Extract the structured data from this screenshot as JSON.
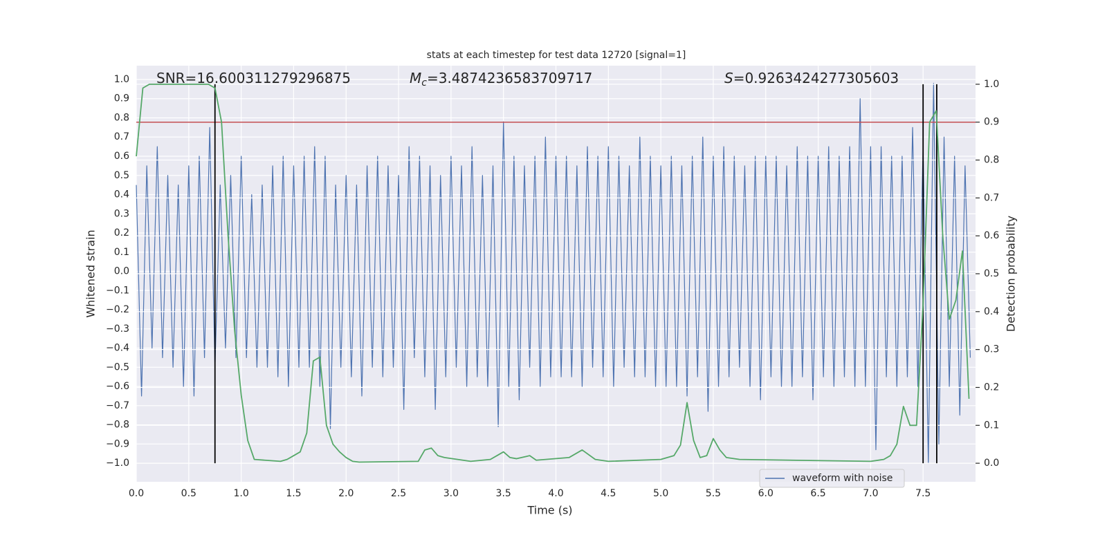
{
  "chart_data": {
    "type": "line",
    "title": "stats at each timestep for test data 12720 [signal=1]",
    "xlabel": "Time (s)",
    "ylabel": "Whitened strain",
    "y2label": "Detection probability",
    "xlim": [
      0,
      8
    ],
    "ylim": [
      -1.097,
      1.072
    ],
    "y2lim": [
      -0.049,
      1.049
    ],
    "grid": true,
    "legend": "lower right",
    "xticks": [
      {
        "value": 0,
        "label": "0.0"
      },
      {
        "value": 0.5,
        "label": "0.5"
      },
      {
        "value": 1,
        "label": "1.0"
      },
      {
        "value": 1.5,
        "label": "1.5"
      },
      {
        "value": 2,
        "label": "2.0"
      },
      {
        "value": 2.5,
        "label": "2.5"
      },
      {
        "value": 3,
        "label": "3.0"
      },
      {
        "value": 3.5,
        "label": "3.5"
      },
      {
        "value": 4,
        "label": "4.0"
      },
      {
        "value": 4.5,
        "label": "4.5"
      },
      {
        "value": 5,
        "label": "5.0"
      },
      {
        "value": 5.5,
        "label": "5.5"
      },
      {
        "value": 6,
        "label": "6.0"
      },
      {
        "value": 6.5,
        "label": "6.5"
      },
      {
        "value": 7,
        "label": "7.0"
      },
      {
        "value": 7.5,
        "label": "7.5"
      }
    ],
    "yticks": [
      {
        "value": -1,
        "label": "−1.0"
      },
      {
        "value": -0.9,
        "label": "−0.9"
      },
      {
        "value": -0.8,
        "label": "−0.8"
      },
      {
        "value": -0.7,
        "label": "−0.7"
      },
      {
        "value": -0.6,
        "label": "−0.6"
      },
      {
        "value": -0.5,
        "label": "−0.5"
      },
      {
        "value": -0.4,
        "label": "−0.4"
      },
      {
        "value": -0.3,
        "label": "−0.3"
      },
      {
        "value": -0.2,
        "label": "−0.2"
      },
      {
        "value": -0.1,
        "label": "−0.1"
      },
      {
        "value": 0,
        "label": "0.0"
      },
      {
        "value": 0.1,
        "label": "0.1"
      },
      {
        "value": 0.2,
        "label": "0.2"
      },
      {
        "value": 0.3,
        "label": "0.3"
      },
      {
        "value": 0.4,
        "label": "0.4"
      },
      {
        "value": 0.5,
        "label": "0.5"
      },
      {
        "value": 0.6,
        "label": "0.6"
      },
      {
        "value": 0.7,
        "label": "0.7"
      },
      {
        "value": 0.8,
        "label": "0.8"
      },
      {
        "value": 0.9,
        "label": "0.9"
      },
      {
        "value": 1,
        "label": "1.0"
      }
    ],
    "y2ticks": [
      {
        "value": 0,
        "label": "0.0"
      },
      {
        "value": 0.1,
        "label": "0.1"
      },
      {
        "value": 0.2,
        "label": "0.2"
      },
      {
        "value": 0.3,
        "label": "0.3"
      },
      {
        "value": 0.4,
        "label": "0.4"
      },
      {
        "value": 0.5,
        "label": "0.5"
      },
      {
        "value": 0.6,
        "label": "0.6"
      },
      {
        "value": 0.7,
        "label": "0.7"
      },
      {
        "value": 0.8,
        "label": "0.8"
      },
      {
        "value": 0.9,
        "label": "0.9"
      },
      {
        "value": 1,
        "label": "1.0"
      }
    ],
    "annotations": [
      {
        "text": "SNR=16.600311279296875"
      },
      {
        "symbol": "M",
        "subscript": "c",
        "text": "=3.4874236583709717"
      },
      {
        "symbol": "S",
        "text": "=0.9263424277305603"
      }
    ],
    "series": [
      {
        "name": "waveform with noise",
        "color": "#4c72b0",
        "axis": "y",
        "x": [
          0,
          0.05,
          0.1,
          0.15,
          0.2,
          0.25,
          0.3,
          0.35,
          0.4,
          0.45,
          0.5,
          0.55,
          0.6,
          0.65,
          0.7,
          0.75,
          0.8,
          0.85,
          0.9,
          0.95,
          1,
          1.05,
          1.1,
          1.15,
          1.2,
          1.25,
          1.3,
          1.35,
          1.4,
          1.45,
          1.5,
          1.55,
          1.6,
          1.65,
          1.7,
          1.75,
          1.8,
          1.85,
          1.9,
          1.95,
          2,
          2.05,
          2.1,
          2.15,
          2.2,
          2.25,
          2.3,
          2.35,
          2.4,
          2.45,
          2.5,
          2.55,
          2.6,
          2.65,
          2.7,
          2.75,
          2.8,
          2.85,
          2.9,
          2.95,
          3,
          3.05,
          3.1,
          3.15,
          3.2,
          3.25,
          3.3,
          3.35,
          3.4,
          3.45,
          3.5,
          3.55,
          3.6,
          3.65,
          3.7,
          3.75,
          3.8,
          3.85,
          3.9,
          3.95,
          4,
          4.05,
          4.1,
          4.15,
          4.2,
          4.25,
          4.3,
          4.35,
          4.4,
          4.45,
          4.5,
          4.55,
          4.6,
          4.65,
          4.7,
          4.75,
          4.8,
          4.85,
          4.9,
          4.95,
          5,
          5.05,
          5.1,
          5.15,
          5.2,
          5.25,
          5.3,
          5.35,
          5.4,
          5.45,
          5.5,
          5.55,
          5.6,
          5.65,
          5.7,
          5.75,
          5.8,
          5.85,
          5.9,
          5.95,
          6,
          6.05,
          6.1,
          6.15,
          6.2,
          6.25,
          6.3,
          6.35,
          6.4,
          6.45,
          6.5,
          6.55,
          6.6,
          6.65,
          6.7,
          6.75,
          6.8,
          6.85,
          6.9,
          6.95,
          7,
          7.05,
          7.1,
          7.15,
          7.2,
          7.25,
          7.3,
          7.35,
          7.4,
          7.45,
          7.5,
          7.55,
          7.6,
          7.65,
          7.7,
          7.75,
          7.8,
          7.85,
          7.9,
          7.95
        ],
        "values": [
          0.45,
          -0.65,
          0.55,
          -0.4,
          0.65,
          -0.45,
          0.5,
          -0.5,
          0.45,
          -0.6,
          0.55,
          -0.65,
          0.6,
          -0.45,
          0.75,
          -0.5,
          0.45,
          -0.4,
          0.5,
          -0.45,
          0.6,
          -0.45,
          0.4,
          -0.5,
          0.45,
          -0.5,
          0.55,
          -0.55,
          0.6,
          -0.6,
          0.55,
          -0.5,
          0.6,
          -0.5,
          0.65,
          -0.6,
          0.6,
          -0.82,
          0.45,
          -0.5,
          0.5,
          -0.55,
          0.45,
          -0.65,
          0.55,
          -0.5,
          0.6,
          -0.55,
          0.55,
          -0.5,
          0.5,
          -0.72,
          0.65,
          -0.45,
          0.6,
          -0.55,
          0.55,
          -0.72,
          0.5,
          -0.55,
          0.6,
          -0.5,
          0.55,
          -0.6,
          0.65,
          -0.55,
          0.5,
          -0.6,
          0.55,
          -0.81,
          0.78,
          -0.6,
          0.6,
          -0.67,
          0.55,
          -0.5,
          0.6,
          -0.6,
          0.7,
          -0.55,
          0.6,
          -0.55,
          0.6,
          -0.55,
          0.55,
          -0.6,
          0.65,
          -0.5,
          0.6,
          -0.55,
          0.65,
          -0.6,
          0.6,
          -0.5,
          0.55,
          -0.55,
          0.7,
          -0.55,
          0.6,
          -0.6,
          0.55,
          -0.6,
          0.6,
          -0.6,
          0.55,
          -0.65,
          0.6,
          -0.55,
          0.7,
          -0.73,
          0.6,
          -0.6,
          0.65,
          -0.55,
          0.6,
          -0.5,
          0.55,
          -0.6,
          0.6,
          -0.67,
          0.6,
          -0.55,
          0.6,
          -0.6,
          0.55,
          -0.6,
          0.65,
          -0.55,
          0.6,
          -0.67,
          0.6,
          -0.55,
          0.65,
          -0.6,
          0.6,
          -0.55,
          0.65,
          -0.6,
          0.9,
          -0.6,
          0.65,
          -0.93,
          0.65,
          -0.55,
          0.6,
          -0.6,
          0.6,
          -0.55,
          0.75,
          -0.6,
          0.65,
          -1.0,
          0.98,
          -0.9,
          0.7,
          -0.6,
          0.6,
          -0.75,
          0.55,
          -0.45
        ]
      },
      {
        "color": "#55a868",
        "axis": "y2",
        "x": [
          0,
          0.0625,
          0.125,
          0.6875,
          0.75,
          0.8125,
          0.875,
          0.9375,
          1.0,
          1.0625,
          1.125,
          1.375,
          1.4375,
          1.5,
          1.5625,
          1.625,
          1.6875,
          1.75,
          1.8125,
          1.875,
          1.9375,
          2.0,
          2.0625,
          2.125,
          2.6875,
          2.75,
          2.8125,
          2.875,
          2.9375,
          3.1875,
          3.375,
          3.4375,
          3.5,
          3.5625,
          3.625,
          3.75,
          3.8125,
          4.125,
          4.25,
          4.375,
          4.5,
          5.0,
          5.125,
          5.1875,
          5.25,
          5.3125,
          5.375,
          5.4375,
          5.5,
          5.5625,
          5.625,
          5.75,
          7.0,
          7.125,
          7.1875,
          7.25,
          7.3125,
          7.375,
          7.4375,
          7.5,
          7.5625,
          7.625,
          7.6875,
          7.75,
          7.8125,
          7.875,
          7.9375
        ],
        "values": [
          0.81,
          0.99,
          1.0,
          1.0,
          0.99,
          0.9,
          0.6,
          0.35,
          0.18,
          0.06,
          0.01,
          0.005,
          0.01,
          0.02,
          0.03,
          0.08,
          0.27,
          0.28,
          0.1,
          0.05,
          0.03,
          0.015,
          0.005,
          0.003,
          0.005,
          0.035,
          0.04,
          0.02,
          0.015,
          0.005,
          0.01,
          0.02,
          0.03,
          0.015,
          0.012,
          0.02,
          0.008,
          0.015,
          0.035,
          0.01,
          0.005,
          0.01,
          0.02,
          0.048,
          0.16,
          0.06,
          0.015,
          0.02,
          0.065,
          0.035,
          0.015,
          0.01,
          0.005,
          0.01,
          0.02,
          0.05,
          0.15,
          0.1,
          0.1,
          0.42,
          0.9,
          0.93,
          0.6,
          0.38,
          0.43,
          0.56,
          0.17
        ]
      }
    ],
    "threshold": {
      "value": 0.9,
      "axis": "y2",
      "color": "#c44e52"
    },
    "vlines": {
      "x": [
        0.75,
        7.5,
        7.63
      ],
      "y2range": [
        0,
        1
      ],
      "color": "#000000"
    }
  }
}
